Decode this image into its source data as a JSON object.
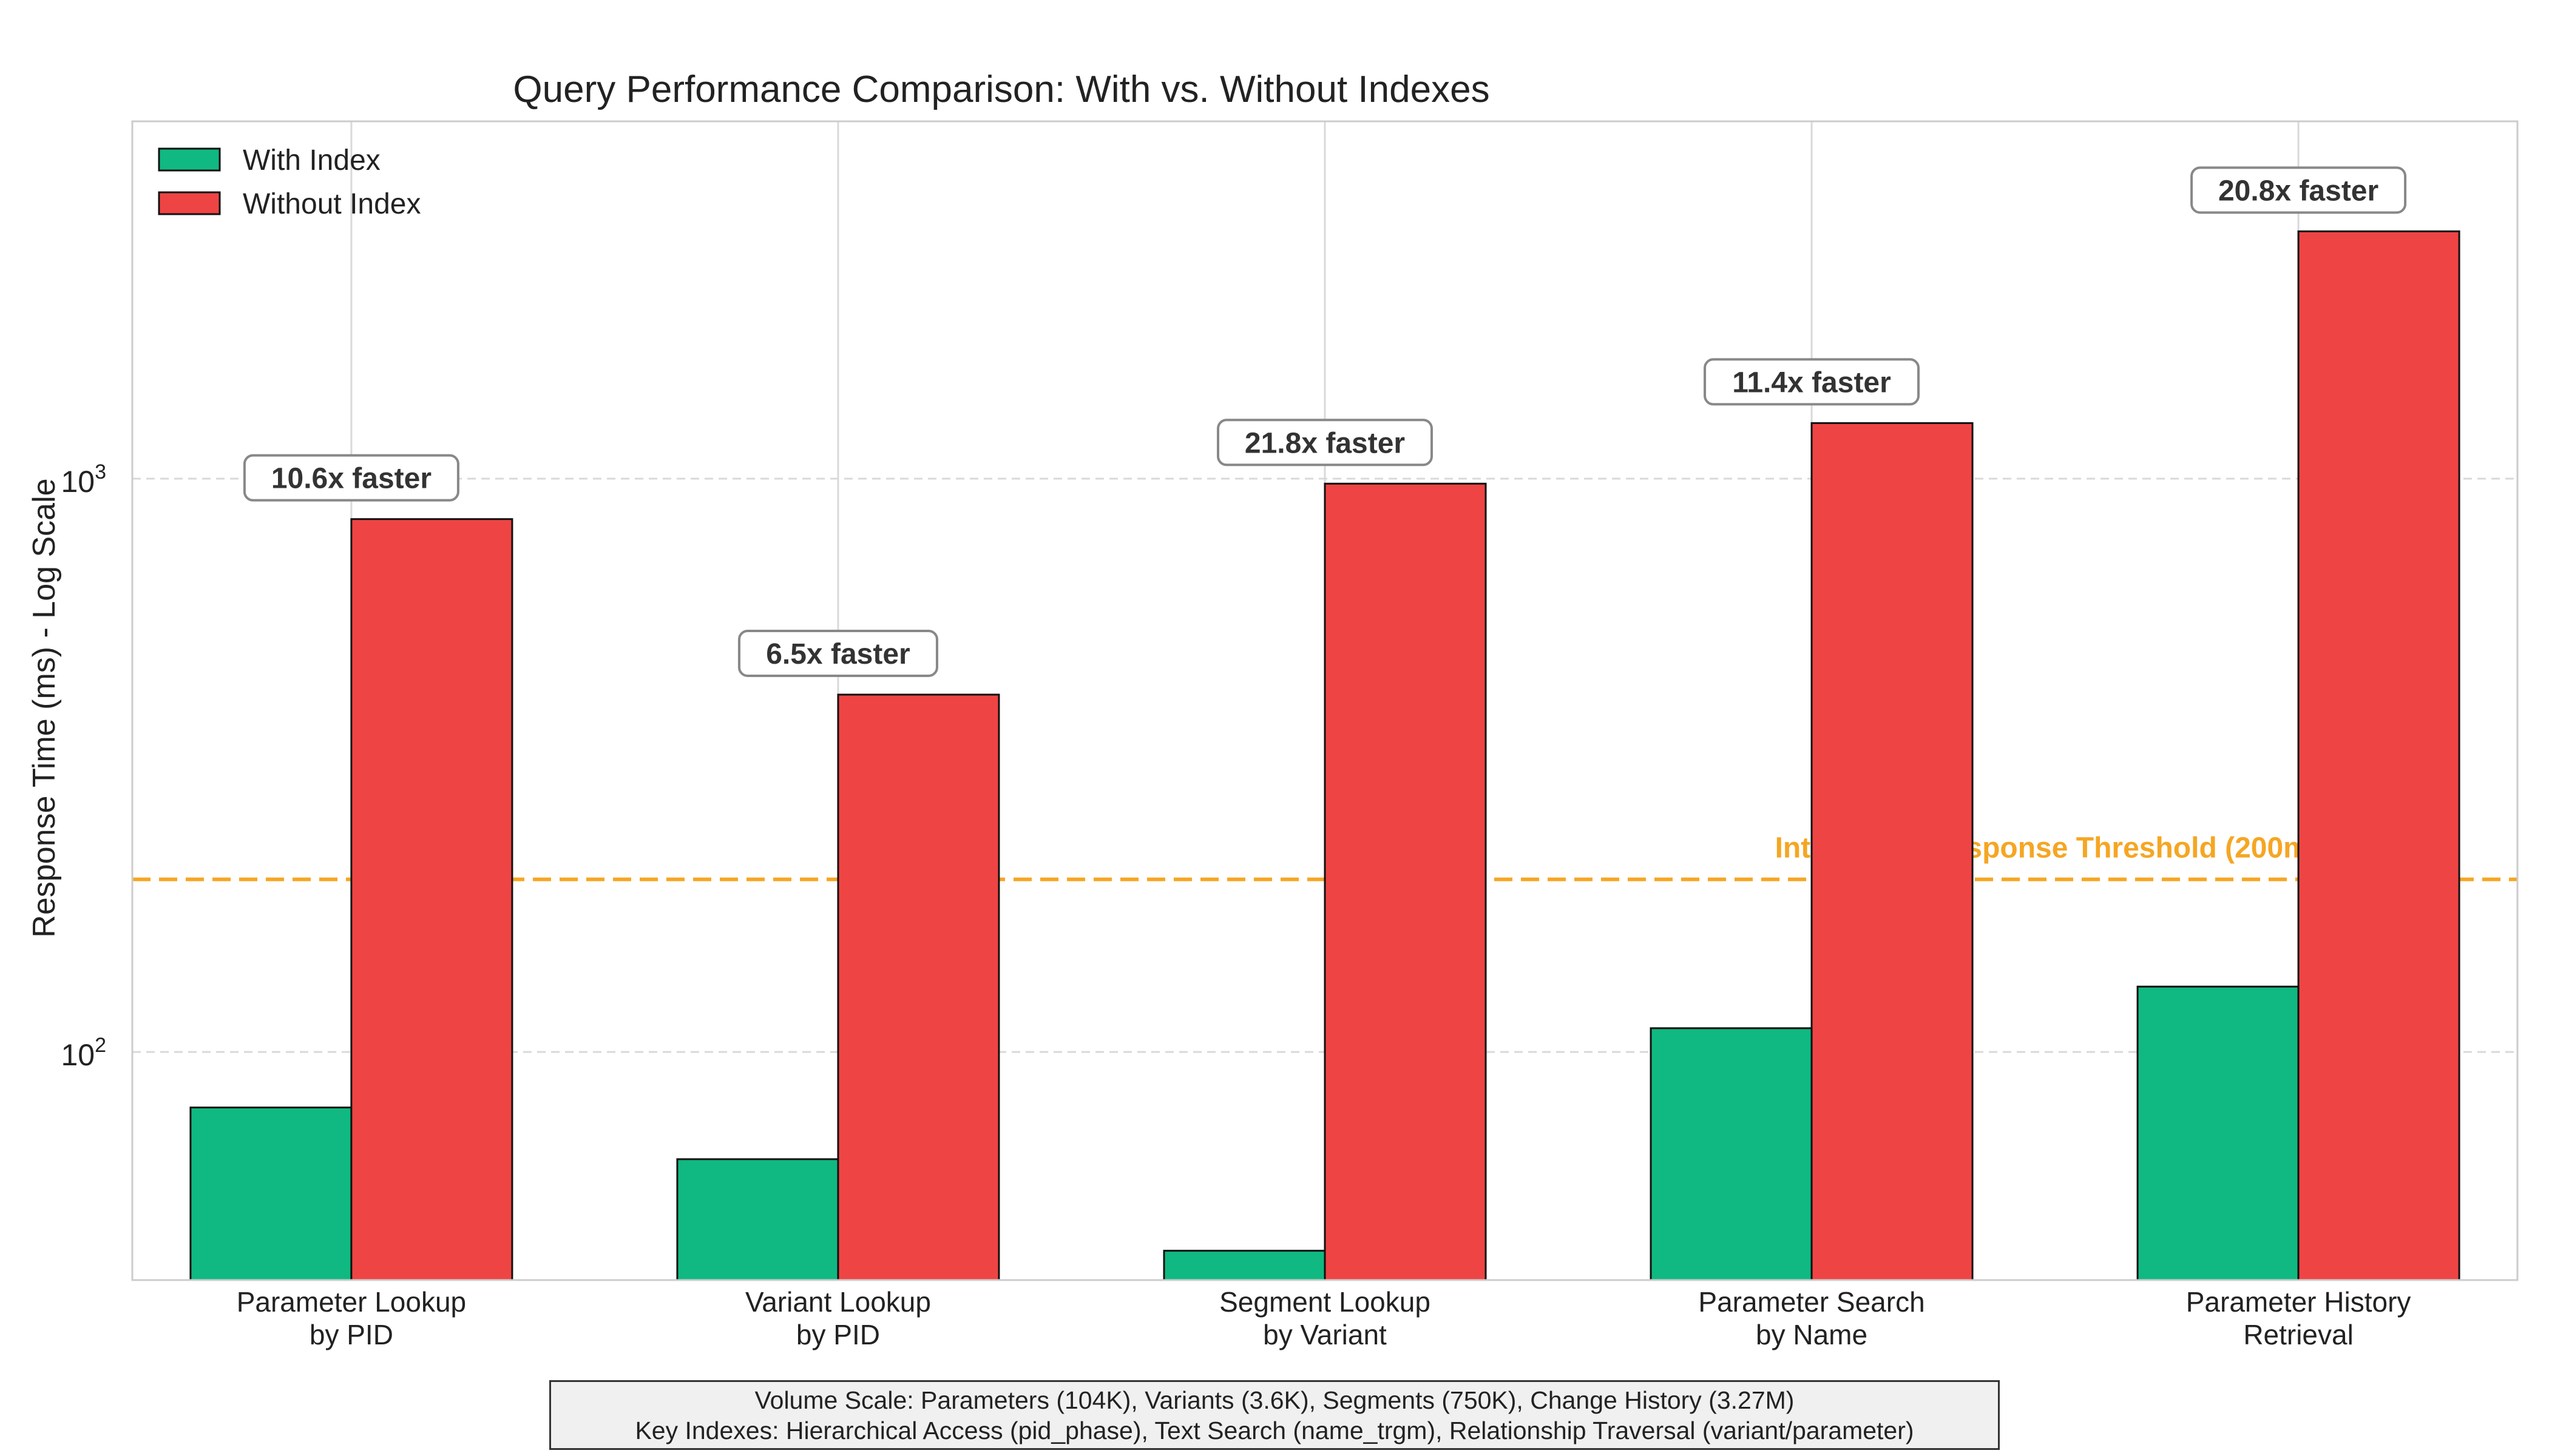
{
  "chart_data": {
    "type": "bar",
    "title": "Query Performance Comparison: With vs. Without Indexes",
    "xlabel": "",
    "ylabel": "Response Time (ms) - Log Scale",
    "yscale": "log",
    "ylim": [
      40,
      4200
    ],
    "yticks": [
      {
        "value": 100,
        "base": "10",
        "exp": "2"
      },
      {
        "value": 1000,
        "base": "10",
        "exp": "3"
      }
    ],
    "grid": true,
    "legend_position": "top-left",
    "categories": [
      [
        "Parameter Lookup",
        "by PID"
      ],
      [
        "Variant Lookup",
        "by PID"
      ],
      [
        "Segment Lookup",
        "by Variant"
      ],
      [
        "Parameter Search",
        "by Name"
      ],
      [
        "Parameter History",
        "Retrieval"
      ]
    ],
    "series": [
      {
        "name": "With Index",
        "color": "#10b981",
        "values": [
          80,
          65,
          45,
          110,
          130
        ]
      },
      {
        "name": "Without Index",
        "color": "#ef4444",
        "values": [
          850,
          420,
          980,
          1250,
          2700
        ]
      }
    ],
    "annotations": [
      "10.6x faster",
      "6.5x faster",
      "21.8x faster",
      "11.4x faster",
      "20.8x faster"
    ],
    "threshold": {
      "value": 200,
      "label": "Interactive Response Threshold (200ms)",
      "color": "#f5a623"
    }
  },
  "footnote": {
    "line1": "Volume Scale: Parameters (104K), Variants (3.6K), Segments (750K), Change History (3.27M)",
    "line2": "Key Indexes: Hierarchical Access (pid_phase), Text Search (name_trgm), Relationship Traversal (variant/parameter)"
  }
}
